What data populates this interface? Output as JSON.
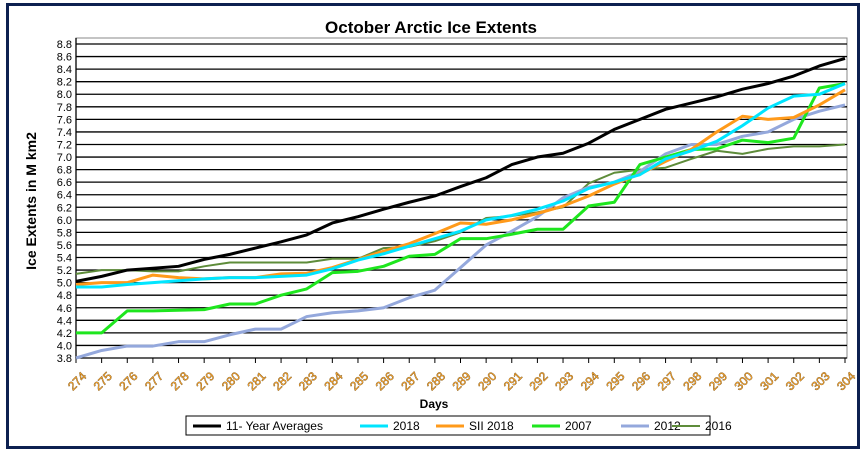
{
  "chart_data": {
    "type": "line",
    "title": "October Arctic Ice Extents",
    "xlabel": "Days",
    "ylabel": "Ice Extents in M km2",
    "ylim": [
      3.8,
      8.8
    ],
    "ytick_step": 0.2,
    "grid": true,
    "legend": "bottom",
    "x": [
      274,
      275,
      276,
      277,
      278,
      279,
      280,
      281,
      282,
      283,
      284,
      285,
      286,
      287,
      288,
      289,
      290,
      291,
      292,
      293,
      294,
      295,
      296,
      297,
      298,
      299,
      300,
      301,
      302,
      303,
      304
    ],
    "series": [
      {
        "name": "11- Year Averages",
        "color": "#000000",
        "values": [
          5.02,
          5.1,
          5.2,
          5.23,
          5.26,
          5.37,
          5.45,
          5.55,
          5.65,
          5.76,
          5.95,
          6.05,
          6.17,
          6.28,
          6.38,
          6.53,
          6.67,
          6.88,
          7.0,
          7.06,
          7.22,
          7.44,
          7.6,
          7.76,
          7.86,
          7.96,
          8.08,
          8.17,
          8.29,
          8.45,
          8.57
        ]
      },
      {
        "name": "2018",
        "color": "#00e5ff",
        "values": [
          4.93,
          4.93,
          4.97,
          5.0,
          5.03,
          5.06,
          5.08,
          5.08,
          5.1,
          5.12,
          5.22,
          5.36,
          5.46,
          5.58,
          5.7,
          5.82,
          6.0,
          6.07,
          6.17,
          6.3,
          6.5,
          6.6,
          6.72,
          6.97,
          7.1,
          7.25,
          7.5,
          7.78,
          7.97,
          8.0,
          8.17
        ]
      },
      {
        "name": "SII 2018",
        "color": "#ff9a1a",
        "values": [
          4.97,
          5.0,
          5.0,
          5.12,
          5.08,
          5.06,
          5.08,
          5.08,
          5.14,
          5.15,
          5.24,
          5.37,
          5.5,
          5.62,
          5.78,
          5.95,
          5.93,
          6.0,
          6.1,
          6.22,
          6.38,
          6.57,
          6.73,
          6.93,
          7.12,
          7.4,
          7.65,
          7.6,
          7.63,
          7.83,
          8.07
        ]
      },
      {
        "name": "2007",
        "color": "#1ee61e",
        "values": [
          4.2,
          4.2,
          4.55,
          4.55,
          4.56,
          4.57,
          4.66,
          4.66,
          4.8,
          4.9,
          5.16,
          5.18,
          5.26,
          5.42,
          5.45,
          5.7,
          5.7,
          5.77,
          5.85,
          5.85,
          6.22,
          6.28,
          6.88,
          7.0,
          7.12,
          7.13,
          7.27,
          7.23,
          7.3,
          8.1,
          8.17
        ]
      },
      {
        "name": "2012",
        "color": "#94a8dc",
        "values": [
          3.8,
          3.92,
          3.99,
          3.99,
          4.06,
          4.06,
          4.17,
          4.26,
          4.26,
          4.46,
          4.52,
          4.55,
          4.6,
          4.76,
          4.88,
          5.24,
          5.6,
          5.82,
          6.05,
          6.35,
          6.52,
          6.6,
          6.77,
          7.05,
          7.2,
          7.2,
          7.33,
          7.4,
          7.6,
          7.73,
          7.83
        ]
      },
      {
        "name": "2016",
        "color": "#5e8c3a",
        "values": [
          5.14,
          5.2,
          5.2,
          5.18,
          5.18,
          5.26,
          5.32,
          5.32,
          5.32,
          5.32,
          5.38,
          5.38,
          5.55,
          5.57,
          5.66,
          5.8,
          6.03,
          6.06,
          6.12,
          6.2,
          6.58,
          6.75,
          6.8,
          6.83,
          6.97,
          7.1,
          7.05,
          7.13,
          7.17,
          7.17,
          7.2
        ]
      }
    ]
  }
}
